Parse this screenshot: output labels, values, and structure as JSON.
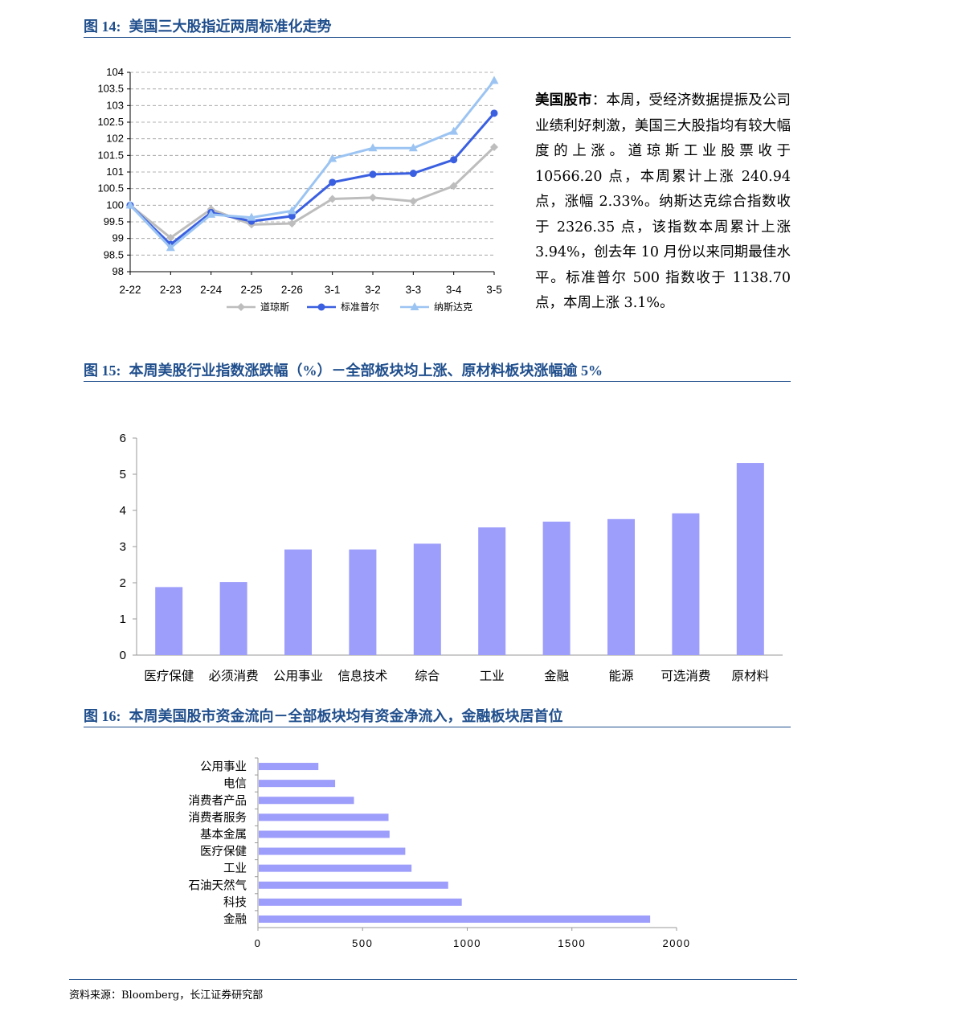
{
  "fig14": {
    "label": "图 14:",
    "title": "美国三大股指近两周标准化走势"
  },
  "fig15": {
    "label": "图 15:",
    "title": "本周美股行业指数涨跌幅（%）－全部板块均上涨、原材料板块涨幅逾 5%"
  },
  "fig16": {
    "label": "图 16:",
    "title": "本周美国股市资金流向－全部板块均有资金净流入，金融板块居首位"
  },
  "commentary": {
    "heading": "美国股市",
    "colon": "：",
    "body": "本周，受经济数据提振及公司业绩利好刺激，美国三大股指均有较大幅度的上涨。道琼斯工业股票收于 10566.20 点，本周累计上涨 240.94 点，涨幅 2.33%。纳斯达克综合指数收于 2326.35 点，该指数本周累计上涨 3.94%，创去年 10 月份以来同期最佳水平。标准普尔 500 指数收于 1138.70 点，本周上涨 3.1%。"
  },
  "source": "资料来源：Bloomberg，长江证券研究部",
  "chart_data": [
    {
      "type": "line",
      "categories": [
        "2-22",
        "2-23",
        "2-24",
        "2-25",
        "2-26",
        "3-1",
        "3-2",
        "3-3",
        "3-4",
        "3-5"
      ],
      "ylim": [
        98,
        104
      ],
      "yticks": [
        "98",
        "98.5",
        "99",
        "99.5",
        "100",
        "100.5",
        "101",
        "101.5",
        "102",
        "102.5",
        "103",
        "103.5",
        "104"
      ],
      "grid": true,
      "legend_position": "bottom",
      "series": [
        {
          "name": "道琼斯",
          "color": "#bdbdbd",
          "marker": "diamond",
          "values": [
            100,
            99.02,
            99.88,
            99.42,
            99.45,
            100.19,
            100.23,
            100.12,
            100.58,
            101.75
          ]
        },
        {
          "name": "标准普尔",
          "color": "#3a5fe0",
          "marker": "circle",
          "values": [
            100,
            98.82,
            99.78,
            99.52,
            99.67,
            100.69,
            100.93,
            100.96,
            101.37,
            102.77
          ]
        },
        {
          "name": "纳斯达克",
          "color": "#9cc4f2",
          "marker": "triangle",
          "values": [
            100,
            98.72,
            99.72,
            99.63,
            99.83,
            101.4,
            101.72,
            101.72,
            102.22,
            103.75
          ]
        }
      ]
    },
    {
      "type": "bar",
      "categories": [
        "医疗保健",
        "必须消费",
        "公用事业",
        "信息技术",
        "综合",
        "工业",
        "金融",
        "能源",
        "可选消费",
        "原材料"
      ],
      "values": [
        1.88,
        2.02,
        2.92,
        2.92,
        3.08,
        3.53,
        3.69,
        3.76,
        3.92,
        5.31
      ],
      "ylim": [
        0,
        6
      ],
      "yticks": [
        "0",
        "1",
        "2",
        "3",
        "4",
        "5",
        "6"
      ],
      "color": "#9d9dfb"
    },
    {
      "type": "bar",
      "orientation": "horizontal",
      "categories": [
        "公用事业",
        "电信",
        "消费者产品",
        "消费者服务",
        "基本金属",
        "医疗保健",
        "工业",
        "石油天然气",
        "科技",
        "金融"
      ],
      "values": [
        285,
        365,
        455,
        620,
        625,
        700,
        730,
        905,
        970,
        1870
      ],
      "xlim": [
        0,
        2000
      ],
      "xticks": [
        "0",
        "500",
        "1000",
        "1500",
        "2000"
      ],
      "color": "#9d9dfb"
    }
  ]
}
